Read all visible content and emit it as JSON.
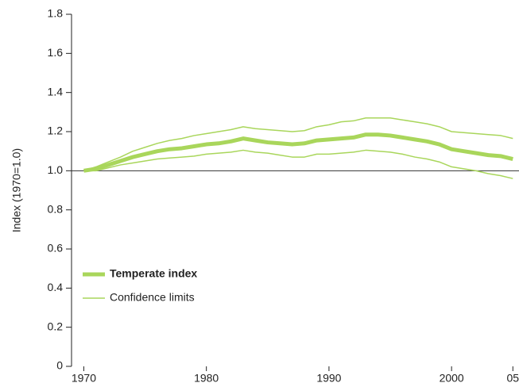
{
  "chart_data": {
    "type": "line",
    "y_label": "Index (1970=1.0)",
    "x": [
      1970,
      1971,
      1972,
      1973,
      1974,
      1975,
      1976,
      1977,
      1978,
      1979,
      1980,
      1981,
      1982,
      1983,
      1984,
      1985,
      1986,
      1987,
      1988,
      1989,
      1990,
      1991,
      1992,
      1993,
      1994,
      1995,
      1996,
      1997,
      1998,
      1999,
      2000,
      2001,
      2002,
      2003,
      2004,
      2005
    ],
    "series": [
      {
        "name": "Temperate index",
        "color": "#a9d65b",
        "width": 5,
        "values": [
          1.0,
          1.01,
          1.03,
          1.05,
          1.07,
          1.085,
          1.1,
          1.11,
          1.115,
          1.125,
          1.135,
          1.14,
          1.15,
          1.165,
          1.155,
          1.145,
          1.14,
          1.135,
          1.14,
          1.155,
          1.16,
          1.165,
          1.17,
          1.185,
          1.185,
          1.18,
          1.17,
          1.16,
          1.15,
          1.135,
          1.11,
          1.1,
          1.09,
          1.08,
          1.075,
          1.06
        ]
      },
      {
        "name": "Confidence limits",
        "color": "#a9d65b",
        "width": 1.5,
        "values": [
          1.0,
          1.02,
          1.045,
          1.07,
          1.1,
          1.12,
          1.14,
          1.155,
          1.165,
          1.18,
          1.19,
          1.2,
          1.21,
          1.225,
          1.215,
          1.21,
          1.205,
          1.2,
          1.205,
          1.225,
          1.235,
          1.25,
          1.255,
          1.27,
          1.27,
          1.27,
          1.26,
          1.25,
          1.24,
          1.225,
          1.2,
          1.195,
          1.19,
          1.185,
          1.18,
          1.165
        ]
      },
      {
        "color": "#a9d65b",
        "width": 1.5,
        "values": [
          1.0,
          1.0,
          1.015,
          1.03,
          1.04,
          1.05,
          1.06,
          1.065,
          1.07,
          1.075,
          1.085,
          1.09,
          1.095,
          1.105,
          1.095,
          1.09,
          1.08,
          1.07,
          1.07,
          1.085,
          1.085,
          1.09,
          1.095,
          1.105,
          1.1,
          1.095,
          1.085,
          1.07,
          1.06,
          1.045,
          1.02,
          1.01,
          1.0,
          0.985,
          0.975,
          0.96
        ]
      }
    ],
    "reference_line": 1,
    "xlim": [
      1969,
      2005.5
    ],
    "xticks": [
      1970,
      1980,
      1990,
      2000,
      {
        "value": 2005,
        "label": "05"
      }
    ],
    "ylim": [
      0,
      1.8
    ],
    "yticks": [
      0,
      0.2,
      0.4,
      0.6,
      0.8,
      {
        "value": 1,
        "label": "1.0"
      },
      1.2,
      1.4,
      1.6,
      1.8
    ],
    "legend": "lower left"
  }
}
